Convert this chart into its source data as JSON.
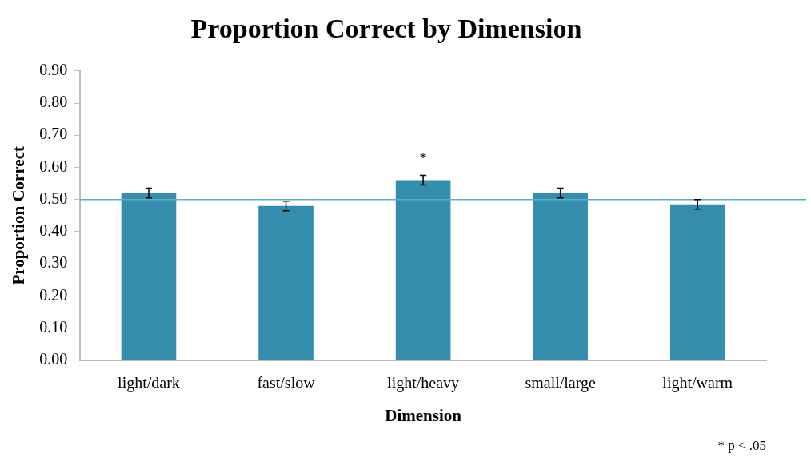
{
  "chart_data": {
    "type": "bar",
    "title": "Proportion Correct by Dimension",
    "xlabel": "Dimension",
    "ylabel": "Proportion Correct",
    "categories": [
      "light/dark",
      "fast/slow",
      "light/heavy",
      "small/large",
      "light/warm"
    ],
    "values": [
      0.52,
      0.48,
      0.56,
      0.52,
      0.485
    ],
    "color": "#358ead",
    "errors": [
      0.015,
      0.015,
      0.015,
      0.015,
      0.015
    ],
    "ylim": [
      0,
      0.9
    ],
    "yticks": [
      {
        "value": 0,
        "label": "0.00"
      },
      {
        "value": 0.1,
        "label": "0.10"
      },
      {
        "value": 0.2,
        "label": "0.20"
      },
      {
        "value": 0.3,
        "label": "0.30"
      },
      {
        "value": 0.4,
        "label": "0.40"
      },
      {
        "value": 0.5,
        "label": "0.50"
      },
      {
        "value": 0.6,
        "label": "0.60"
      },
      {
        "value": 0.7,
        "label": "0.70"
      },
      {
        "value": 0.8,
        "label": "0.80"
      },
      {
        "value": 0.9,
        "label": "0.90"
      }
    ],
    "ref_lines": [
      {
        "axis": "y",
        "value": 0.5,
        "color": "#5aaec0"
      }
    ],
    "annotations": [
      {
        "text": "*",
        "x": "light/heavy",
        "y": 0.56
      },
      "* p < .05"
    ],
    "grid": false,
    "legend": false
  }
}
